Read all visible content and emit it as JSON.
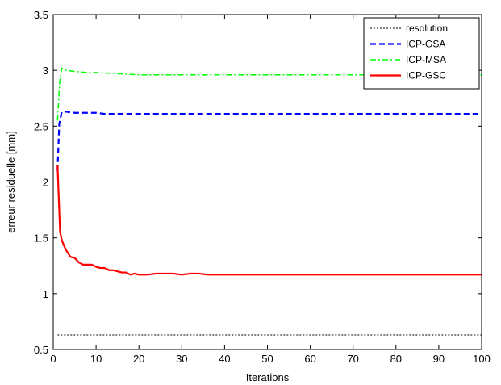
{
  "chart_data": {
    "type": "line",
    "title": "",
    "xlabel": "Iterations",
    "ylabel": "erreur residuelle [mm]",
    "xlim": [
      0,
      100
    ],
    "ylim": [
      0.5,
      3.5
    ],
    "xticks": [
      0,
      10,
      20,
      30,
      40,
      50,
      60,
      70,
      80,
      90,
      100
    ],
    "yticks": [
      0.5,
      1,
      1.5,
      2,
      2.5,
      3,
      3.5
    ],
    "xtick_labels": [
      "0",
      "10",
      "20",
      "30",
      "40",
      "50",
      "60",
      "70",
      "80",
      "90",
      "100"
    ],
    "ytick_labels": [
      "0.5",
      "1",
      "1.5",
      "2",
      "2.5",
      "3",
      "3.5"
    ],
    "grid": false,
    "legend_position": "top-right",
    "series": [
      {
        "name": "resolution",
        "color": "#000000",
        "style": "dotted",
        "x": [
          1,
          100
        ],
        "y": [
          0.63,
          0.63
        ]
      },
      {
        "name": "ICP-GSA",
        "color": "#0000ff",
        "style": "dashed",
        "x": [
          1,
          1.4,
          2,
          3,
          5,
          8,
          10,
          12,
          20,
          30,
          50,
          70,
          100
        ],
        "y": [
          2.1,
          2.52,
          2.63,
          2.63,
          2.62,
          2.62,
          2.62,
          2.61,
          2.61,
          2.61,
          2.61,
          2.61,
          2.61
        ]
      },
      {
        "name": "ICP-MSA",
        "color": "#00ff00",
        "style": "dashdot",
        "x": [
          1,
          1.5,
          2,
          3,
          5,
          8,
          10,
          15,
          20,
          30,
          50,
          70,
          100
        ],
        "y": [
          2.55,
          2.9,
          3.02,
          3.0,
          2.99,
          2.98,
          2.98,
          2.97,
          2.96,
          2.96,
          2.96,
          2.96,
          2.96
        ]
      },
      {
        "name": "ICP-GSC",
        "color": "#ff0000",
        "style": "solid",
        "x": [
          1,
          1.3,
          1.6,
          2,
          2.5,
          3,
          3.5,
          4,
          5,
          6,
          7,
          8,
          9,
          10,
          11,
          12,
          13,
          14,
          15,
          16,
          17,
          18,
          19,
          20,
          22,
          24,
          26,
          28,
          30,
          32,
          34,
          36,
          40,
          50,
          60,
          70,
          80,
          90,
          100
        ],
        "y": [
          2.15,
          1.85,
          1.55,
          1.48,
          1.43,
          1.39,
          1.36,
          1.33,
          1.32,
          1.28,
          1.26,
          1.26,
          1.26,
          1.24,
          1.23,
          1.23,
          1.21,
          1.21,
          1.2,
          1.19,
          1.19,
          1.17,
          1.18,
          1.17,
          1.17,
          1.18,
          1.18,
          1.18,
          1.17,
          1.18,
          1.18,
          1.17,
          1.17,
          1.17,
          1.17,
          1.17,
          1.17,
          1.17,
          1.17
        ]
      }
    ]
  }
}
